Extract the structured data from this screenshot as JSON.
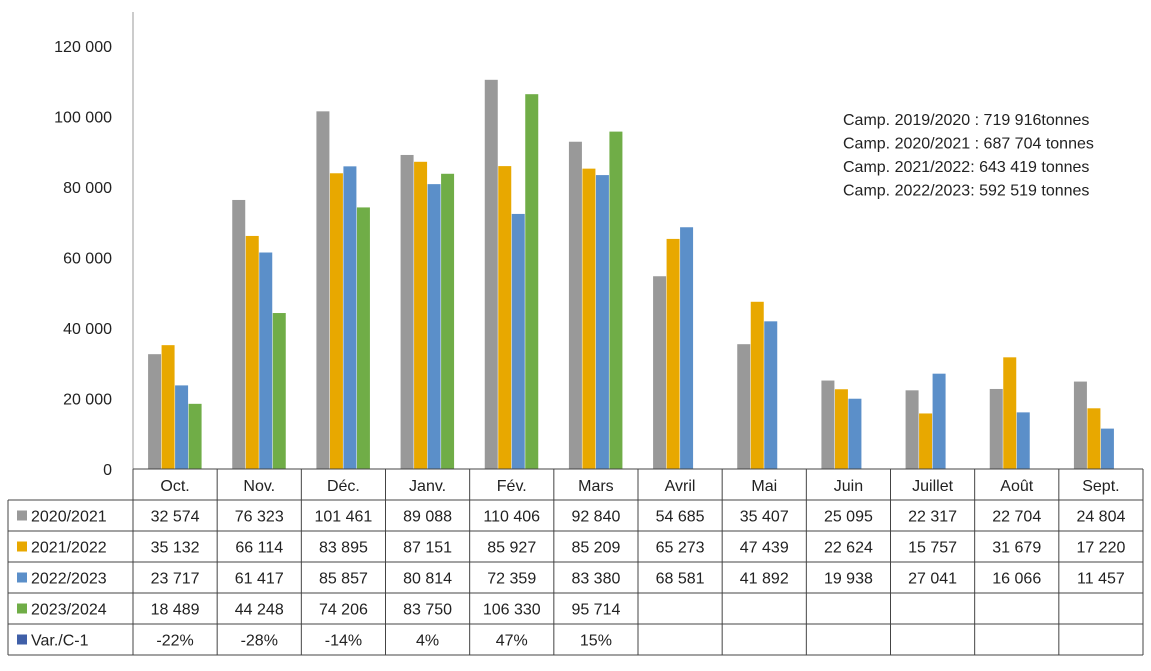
{
  "chart_data": {
    "type": "bar",
    "ylim": [
      0,
      120000
    ],
    "yticks": [
      "0",
      "20 000",
      "40 000",
      "60 000",
      "80 000",
      "100 000",
      "120 000"
    ],
    "ytick_values": [
      0,
      20000,
      40000,
      60000,
      80000,
      100000,
      120000
    ],
    "categories": [
      "Oct.",
      "Nov.",
      "Déc.",
      "Janv.",
      "Fév.",
      "Mars",
      "Avril",
      "Mai",
      "Juin",
      "Juillet",
      "Août",
      "Sept."
    ],
    "series": [
      {
        "name": "2020/2021",
        "color": "#999999",
        "values": [
          32574,
          76323,
          101461,
          89088,
          110406,
          92840,
          54685,
          35407,
          25095,
          22317,
          22704,
          24804
        ],
        "labels": [
          "32 574",
          "76 323",
          "101 461",
          "89 088",
          "110 406",
          "92 840",
          "54 685",
          "35 407",
          "25 095",
          "22 317",
          "22 704",
          "24 804"
        ]
      },
      {
        "name": "2021/2022",
        "color": "#E8A800",
        "values": [
          35132,
          66114,
          83895,
          87151,
          85927,
          85209,
          65273,
          47439,
          22624,
          15757,
          31679,
          17220
        ],
        "labels": [
          "35 132",
          "66 114",
          "83 895",
          "87 151",
          "85 927",
          "85 209",
          "65 273",
          "47 439",
          "22 624",
          "15 757",
          "31 679",
          "17 220"
        ]
      },
      {
        "name": "2022/2023",
        "color": "#5B8FC9",
        "values": [
          23717,
          61417,
          85857,
          80814,
          72359,
          83380,
          68581,
          41892,
          19938,
          27041,
          16066,
          11457
        ],
        "labels": [
          "23 717",
          "61 417",
          "85 857",
          "80 814",
          "72 359",
          "83 380",
          "68 581",
          "41 892",
          "19 938",
          "27 041",
          "16 066",
          "11 457"
        ]
      },
      {
        "name": "2023/2024",
        "color": "#70AD47",
        "values": [
          18489,
          44248,
          74206,
          83750,
          106330,
          95714,
          null,
          null,
          null,
          null,
          null,
          null
        ],
        "labels": [
          "18 489",
          "44 248",
          "74 206",
          "83 750",
          "106 330",
          "95 714",
          "",
          "",
          "",
          "",
          "",
          ""
        ]
      }
    ],
    "table_extra_row": {
      "name": "Var./C-1",
      "color": "#3F5FA8",
      "labels": [
        "-22%",
        "-28%",
        "-14%",
        "4%",
        "47%",
        "15%",
        "",
        "",
        "",
        "",
        "",
        ""
      ]
    },
    "annotations": [
      "Camp. 2019/2020 : 719 916tonnes",
      "Camp. 2020/2021 : 687 704 tonnes",
      "Camp. 2021/2022: 643 419 tonnes",
      "Camp. 2022/2023: 592 519 tonnes"
    ]
  }
}
